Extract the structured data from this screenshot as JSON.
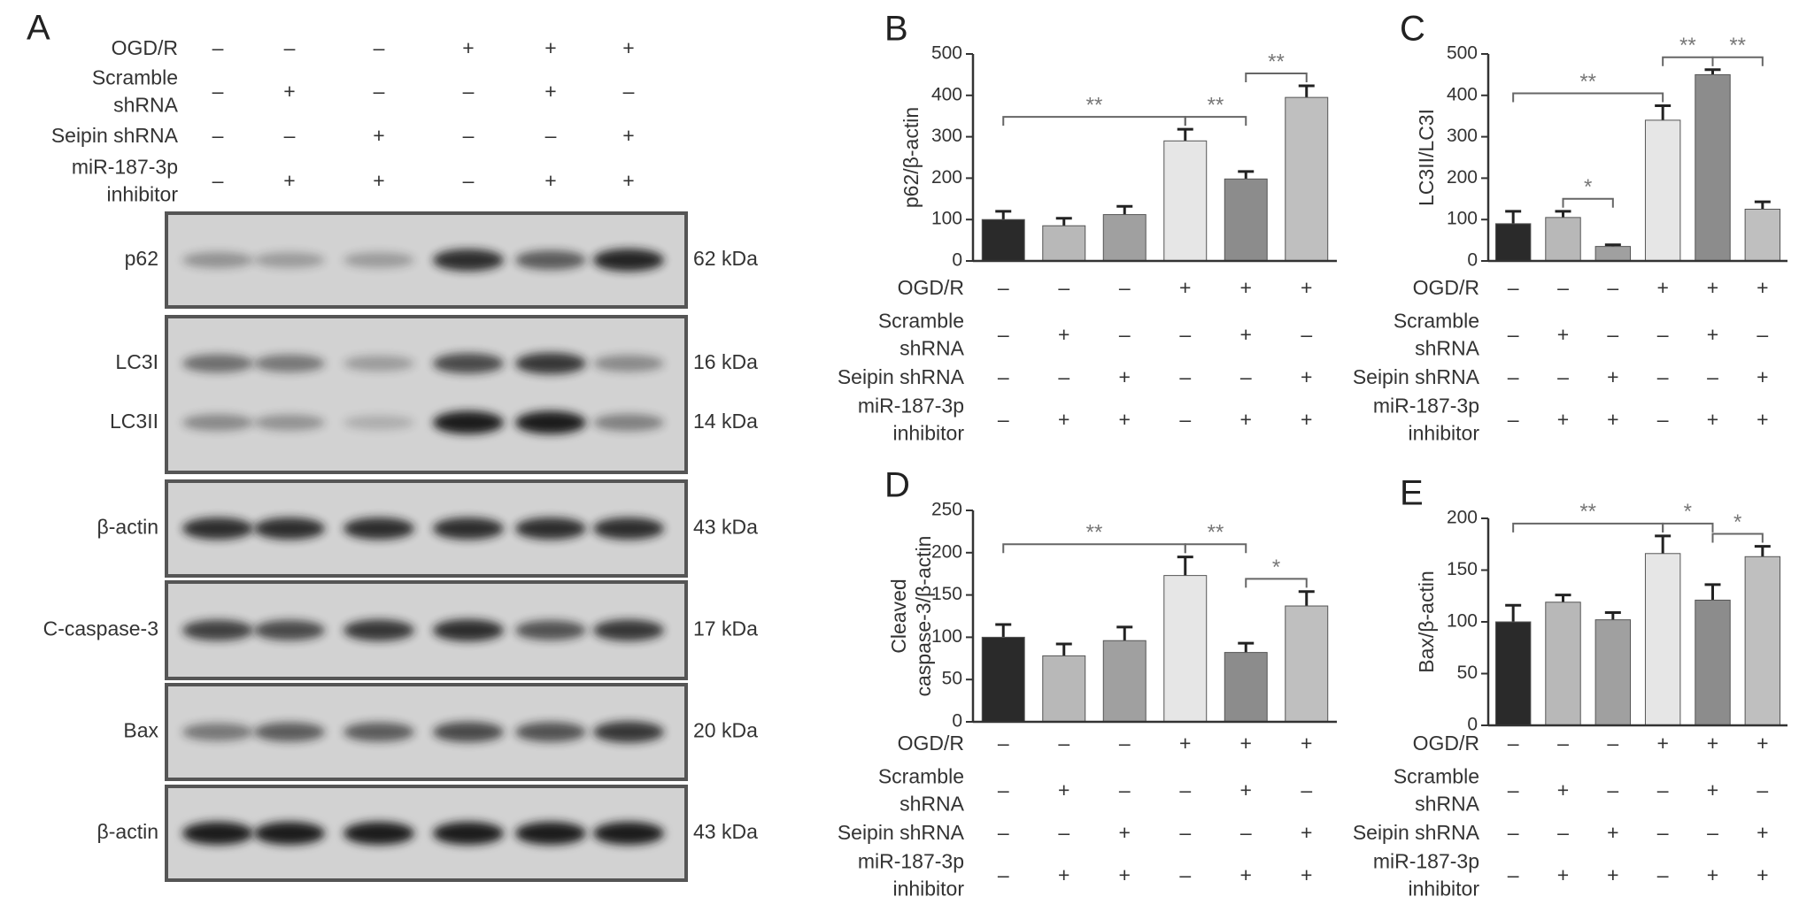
{
  "panel_a": {
    "letter": "A",
    "conditions": [
      {
        "label": [
          "OGD/R"
        ],
        "signs": [
          "–",
          "–",
          "–",
          "+",
          "+",
          "+"
        ]
      },
      {
        "label": [
          "Scramble",
          "shRNA"
        ],
        "signs": [
          "–",
          "+",
          "–",
          "–",
          "+",
          "–"
        ]
      },
      {
        "label": [
          "Seipin shRNA"
        ],
        "signs": [
          "–",
          "–",
          "+",
          "–",
          "–",
          "+"
        ]
      },
      {
        "label": [
          "miR-187-3p",
          "inhibitor"
        ],
        "signs": [
          "–",
          "+",
          "+",
          "–",
          "+",
          "+"
        ]
      }
    ],
    "blots": [
      {
        "rows": [
          {
            "label": "p62",
            "size": "62 kDa"
          }
        ]
      },
      {
        "rows": [
          {
            "label": "LC3I",
            "size": "16 kDa"
          },
          {
            "label": "LC3II",
            "size": "14 kDa"
          }
        ]
      },
      {
        "rows": [
          {
            "label": "β-actin",
            "size": "43 kDa"
          }
        ]
      },
      {
        "rows": [
          {
            "label": "C-caspase-3",
            "size": "17 kDa"
          }
        ]
      },
      {
        "rows": [
          {
            "label": "Bax",
            "size": "20 kDa"
          }
        ]
      },
      {
        "rows": [
          {
            "label": "β-actin",
            "size": "43 kDa"
          }
        ]
      }
    ]
  },
  "chart_data": [
    {
      "type": "bar",
      "letter": "B",
      "ylabel": [
        "p62/β-actin"
      ],
      "values": [
        100,
        85,
        112,
        290,
        198,
        395
      ],
      "errors": [
        20,
        18,
        20,
        28,
        18,
        28
      ],
      "colors": [
        "#2a2a2a",
        "#b8b8b8",
        "#a0a0a0",
        "#e6e6e6",
        "#8c8c8c",
        "#bfbfbf"
      ],
      "ylim": [
        0,
        500
      ],
      "yticks": [
        0,
        100,
        200,
        300,
        400,
        500
      ],
      "annotations": [
        {
          "from": 0,
          "to": 3,
          "label": "**"
        },
        {
          "from": 3,
          "to": 4,
          "label": "**"
        },
        {
          "from": 4,
          "to": 5,
          "label": "**"
        }
      ],
      "conditions": [
        {
          "label": [
            "OGD/R"
          ],
          "signs": [
            "–",
            "–",
            "–",
            "+",
            "+",
            "+"
          ]
        },
        {
          "label": [
            "Scramble",
            "shRNA"
          ],
          "signs": [
            "–",
            "+",
            "–",
            "–",
            "+",
            "–"
          ]
        },
        {
          "label": [
            "Seipin shRNA"
          ],
          "signs": [
            "–",
            "–",
            "+",
            "–",
            "–",
            "+"
          ]
        },
        {
          "label": [
            "miR-187-3p",
            "inhibitor"
          ],
          "signs": [
            "–",
            "+",
            "+",
            "–",
            "+",
            "+"
          ]
        }
      ]
    },
    {
      "type": "bar",
      "letter": "C",
      "ylabel": [
        "LC3II/LC3I"
      ],
      "values": [
        90,
        105,
        35,
        340,
        450,
        125
      ],
      "errors": [
        30,
        15,
        4,
        35,
        12,
        18
      ],
      "colors": [
        "#2a2a2a",
        "#b8b8b8",
        "#a0a0a0",
        "#e6e6e6",
        "#8c8c8c",
        "#bfbfbf"
      ],
      "ylim": [
        0,
        500
      ],
      "yticks": [
        0,
        100,
        200,
        300,
        400,
        500
      ],
      "annotations": [
        {
          "from": 0,
          "to": 3,
          "label": "**"
        },
        {
          "from": 1,
          "to": 2,
          "label": "*"
        },
        {
          "from": 3,
          "to": 4,
          "label": "**"
        },
        {
          "from": 4,
          "to": 5,
          "label": "**"
        }
      ],
      "conditions": [
        {
          "label": [
            "OGD/R"
          ],
          "signs": [
            "–",
            "–",
            "–",
            "+",
            "+",
            "+"
          ]
        },
        {
          "label": [
            "Scramble",
            "shRNA"
          ],
          "signs": [
            "–",
            "+",
            "–",
            "–",
            "+",
            "–"
          ]
        },
        {
          "label": [
            "Seipin shRNA"
          ],
          "signs": [
            "–",
            "–",
            "+",
            "–",
            "–",
            "+"
          ]
        },
        {
          "label": [
            "miR-187-3p",
            "inhibitor"
          ],
          "signs": [
            "–",
            "+",
            "+",
            "–",
            "+",
            "+"
          ]
        }
      ]
    },
    {
      "type": "bar",
      "letter": "D",
      "ylabel": [
        "Cleaved",
        "caspase-3/β-actin"
      ],
      "values": [
        100,
        78,
        96,
        173,
        82,
        137
      ],
      "errors": [
        15,
        14,
        16,
        22,
        11,
        17
      ],
      "colors": [
        "#2a2a2a",
        "#b8b8b8",
        "#a0a0a0",
        "#e6e6e6",
        "#8c8c8c",
        "#bfbfbf"
      ],
      "ylim": [
        0,
        250
      ],
      "yticks": [
        0,
        50,
        100,
        150,
        200,
        250
      ],
      "annotations": [
        {
          "from": 0,
          "to": 3,
          "label": "**"
        },
        {
          "from": 3,
          "to": 4,
          "label": "**"
        },
        {
          "from": 4,
          "to": 5,
          "label": "*"
        }
      ],
      "conditions": [
        {
          "label": [
            "OGD/R"
          ],
          "signs": [
            "–",
            "–",
            "–",
            "+",
            "+",
            "+"
          ]
        },
        {
          "label": [
            "Scramble",
            "shRNA"
          ],
          "signs": [
            "–",
            "+",
            "–",
            "–",
            "+",
            "–"
          ]
        },
        {
          "label": [
            "Seipin shRNA"
          ],
          "signs": [
            "–",
            "–",
            "+",
            "–",
            "–",
            "+"
          ]
        },
        {
          "label": [
            "miR-187-3p",
            "inhibitor"
          ],
          "signs": [
            "–",
            "+",
            "+",
            "–",
            "+",
            "+"
          ]
        }
      ]
    },
    {
      "type": "bar",
      "letter": "E",
      "ylabel": [
        "Bax/β-actin"
      ],
      "values": [
        100,
        119,
        102,
        166,
        121,
        163
      ],
      "errors": [
        16,
        7,
        7,
        17,
        15,
        10
      ],
      "colors": [
        "#2a2a2a",
        "#b8b8b8",
        "#a0a0a0",
        "#e6e6e6",
        "#8c8c8c",
        "#bfbfbf"
      ],
      "ylim": [
        0,
        200
      ],
      "yticks": [
        0,
        50,
        100,
        150,
        200
      ],
      "annotations": [
        {
          "from": 0,
          "to": 3,
          "label": "**"
        },
        {
          "from": 3,
          "to": 4,
          "label": "*"
        },
        {
          "from": 4,
          "to": 5,
          "label": "*"
        }
      ],
      "conditions": [
        {
          "label": [
            "OGD/R"
          ],
          "signs": [
            "–",
            "–",
            "–",
            "+",
            "+",
            "+"
          ]
        },
        {
          "label": [
            "Scramble",
            "shRNA"
          ],
          "signs": [
            "–",
            "+",
            "–",
            "–",
            "+",
            "–"
          ]
        },
        {
          "label": [
            "Seipin shRNA"
          ],
          "signs": [
            "–",
            "–",
            "+",
            "–",
            "–",
            "+"
          ]
        },
        {
          "label": [
            "miR-187-3p",
            "inhibitor"
          ],
          "signs": [
            "–",
            "+",
            "+",
            "–",
            "+",
            "+"
          ]
        }
      ]
    }
  ]
}
